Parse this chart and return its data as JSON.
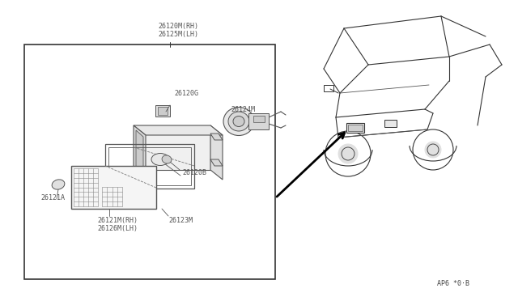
{
  "bg_color": "#ffffff",
  "line_color": "#555555",
  "dark_line": "#333333",
  "label_color": "#555555",
  "title_code": "AP6 *0·B",
  "font_size": 6.0,
  "labels": {
    "top": "26120M(RH)\n26125M(LH)",
    "26120G": "26120G",
    "26124M": "26124M",
    "26120B": "26120B",
    "26121A": "26121A",
    "26121M": "26121M(RH)\n26126M(LH)",
    "26123M": "26123M"
  }
}
